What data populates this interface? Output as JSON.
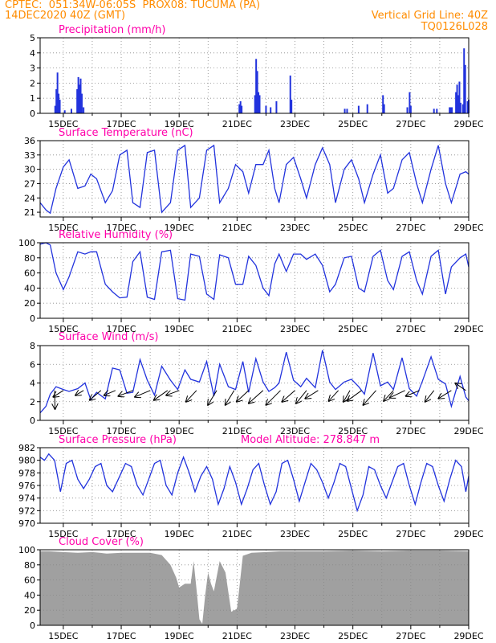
{
  "header": {
    "line1": "CPTEC:  051:34W-06:05S  PROX08: TUCUMA (PA)",
    "line2_left": "14DEC2020 40Z (GMT)",
    "line2_right": "Vertical Grid Line: 40Z",
    "line3_right": "TQ0126L028"
  },
  "colors": {
    "header": "#ff8c00",
    "panel_title": "#ff00aa",
    "series": "#2233dd",
    "cloud": "#a0a0a0",
    "arrow": "#000000"
  },
  "chart_data": [
    {
      "type": "bar",
      "title": "Precipitation (mm/h)",
      "ylim": [
        0,
        5
      ],
      "yticks": [
        "0",
        "1",
        "2",
        "3",
        "4",
        "5"
      ],
      "xticks": [
        "15DEC",
        "17DEC",
        "19DEC",
        "21DEC",
        "23DEC",
        "25DEC",
        "27DEC",
        "29DEC"
      ],
      "x_unit": "day_of_dec",
      "xlim": [
        14.2,
        29.0
      ],
      "points": [
        [
          14.72,
          0.5
        ],
        [
          14.76,
          1.6
        ],
        [
          14.8,
          2.7
        ],
        [
          14.84,
          1.3
        ],
        [
          14.88,
          0.9
        ],
        [
          15.05,
          0.2
        ],
        [
          15.28,
          0.3
        ],
        [
          15.48,
          1.6
        ],
        [
          15.52,
          2.4
        ],
        [
          15.56,
          1.9
        ],
        [
          15.6,
          2.3
        ],
        [
          15.64,
          1.3
        ],
        [
          15.7,
          0.4
        ],
        [
          21.08,
          0.6
        ],
        [
          21.12,
          0.8
        ],
        [
          21.16,
          0.5
        ],
        [
          21.62,
          1.2
        ],
        [
          21.66,
          3.6
        ],
        [
          21.7,
          2.8
        ],
        [
          21.74,
          1.4
        ],
        [
          21.78,
          1.2
        ],
        [
          22.0,
          0.5
        ],
        [
          22.16,
          0.4
        ],
        [
          22.36,
          0.8
        ],
        [
          22.84,
          2.5
        ],
        [
          22.88,
          0.9
        ],
        [
          24.72,
          0.3
        ],
        [
          24.8,
          0.3
        ],
        [
          25.2,
          0.5
        ],
        [
          25.5,
          0.6
        ],
        [
          26.04,
          1.2
        ],
        [
          26.08,
          0.6
        ],
        [
          26.88,
          0.4
        ],
        [
          26.96,
          1.4
        ],
        [
          27.0,
          0.5
        ],
        [
          27.8,
          0.3
        ],
        [
          27.9,
          0.3
        ],
        [
          28.34,
          0.4
        ],
        [
          28.38,
          0.4
        ],
        [
          28.42,
          0.4
        ],
        [
          28.56,
          1.4
        ],
        [
          28.6,
          1.9
        ],
        [
          28.64,
          1.2
        ],
        [
          28.68,
          2.1
        ],
        [
          28.72,
          0.7
        ],
        [
          28.8,
          0.6
        ],
        [
          28.84,
          4.3
        ],
        [
          28.88,
          3.2
        ],
        [
          28.96,
          0.8
        ],
        [
          29.0,
          0.9
        ]
      ]
    },
    {
      "type": "line",
      "title": "Surface Temperature (nC)",
      "ylim": [
        20,
        36
      ],
      "yticks": [
        "21",
        "24",
        "27",
        "30",
        "33",
        "36"
      ],
      "ytick_values": [
        21,
        24,
        27,
        30,
        33,
        36
      ],
      "xticks": [
        "15DEC",
        "17DEC",
        "19DEC",
        "21DEC",
        "23DEC",
        "25DEC",
        "27DEC",
        "29DEC"
      ],
      "x": [
        14.2,
        14.4,
        14.55,
        14.75,
        15.0,
        15.2,
        15.5,
        15.75,
        15.95,
        16.15,
        16.45,
        16.7,
        16.95,
        17.2,
        17.4,
        17.65,
        17.9,
        18.15,
        18.4,
        18.7,
        18.95,
        19.2,
        19.4,
        19.7,
        19.95,
        20.2,
        20.4,
        20.7,
        20.95,
        21.2,
        21.4,
        21.65,
        21.9,
        22.1,
        22.3,
        22.45,
        22.7,
        22.95,
        23.2,
        23.4,
        23.7,
        23.95,
        24.2,
        24.4,
        24.7,
        24.95,
        25.2,
        25.4,
        25.7,
        25.95,
        26.2,
        26.4,
        26.7,
        26.95,
        27.2,
        27.4,
        27.7,
        27.95,
        28.2,
        28.4,
        28.7,
        28.9,
        29.0
      ],
      "y": [
        23,
        21.5,
        20.8,
        26,
        30.5,
        32,
        26,
        26.5,
        29,
        28,
        23,
        25.5,
        33,
        34,
        23,
        22,
        33.5,
        34,
        21,
        23,
        34,
        35,
        22,
        24,
        34,
        35,
        23,
        26,
        31,
        29.5,
        25,
        31,
        31,
        34,
        26,
        23,
        31,
        32.5,
        28,
        24,
        31,
        34.5,
        31,
        23,
        30,
        32,
        28,
        23,
        29,
        33,
        25,
        26,
        32,
        33.5,
        27,
        23,
        30,
        35,
        27,
        23,
        29,
        29.5,
        29
      ]
    },
    {
      "type": "line",
      "title": "Relative Humidity (%)",
      "ylim": [
        0,
        100
      ],
      "yticks": [
        "0",
        "20",
        "40",
        "60",
        "80",
        "100"
      ],
      "ytick_values": [
        0,
        20,
        40,
        60,
        80,
        100
      ],
      "xticks": [
        "15DEC",
        "17DEC",
        "19DEC",
        "21DEC",
        "23DEC",
        "25DEC",
        "27DEC",
        "29DEC"
      ],
      "x": [
        14.2,
        14.4,
        14.55,
        14.75,
        15.0,
        15.2,
        15.5,
        15.75,
        15.95,
        16.15,
        16.45,
        16.7,
        16.95,
        17.2,
        17.4,
        17.65,
        17.9,
        18.15,
        18.4,
        18.7,
        18.95,
        19.2,
        19.4,
        19.7,
        19.95,
        20.2,
        20.4,
        20.7,
        20.95,
        21.2,
        21.4,
        21.65,
        21.9,
        22.1,
        22.3,
        22.45,
        22.7,
        22.95,
        23.2,
        23.4,
        23.7,
        23.95,
        24.2,
        24.4,
        24.7,
        24.95,
        25.2,
        25.4,
        25.7,
        25.95,
        26.2,
        26.4,
        26.7,
        26.95,
        27.2,
        27.4,
        27.7,
        27.95,
        28.2,
        28.4,
        28.7,
        28.9,
        29.0
      ],
      "y": [
        98,
        100,
        97,
        60,
        38,
        55,
        88,
        85,
        88,
        88,
        45,
        35,
        27,
        28,
        75,
        88,
        28,
        25,
        88,
        90,
        26,
        24,
        85,
        82,
        32,
        25,
        84,
        80,
        45,
        45,
        82,
        70,
        40,
        30,
        72,
        85,
        62,
        85,
        85,
        78,
        85,
        70,
        35,
        45,
        80,
        82,
        40,
        35,
        82,
        90,
        50,
        38,
        82,
        88,
        50,
        32,
        82,
        90,
        32,
        68,
        80,
        85,
        68
      ]
    },
    {
      "type": "line",
      "title": "Surface Wind (m/s)",
      "ylim": [
        0,
        8
      ],
      "yticks": [
        "0",
        "2",
        "4",
        "6",
        "8"
      ],
      "ytick_values": [
        0,
        2,
        4,
        6,
        8
      ],
      "xticks": [
        "15DEC",
        "17DEC",
        "19DEC",
        "21DEC",
        "23DEC",
        "25DEC",
        "27DEC",
        "29DEC"
      ],
      "x": [
        14.2,
        14.4,
        14.55,
        14.75,
        15.0,
        15.2,
        15.5,
        15.75,
        15.95,
        16.15,
        16.45,
        16.7,
        16.95,
        17.2,
        17.4,
        17.65,
        17.9,
        18.15,
        18.4,
        18.7,
        18.95,
        19.2,
        19.4,
        19.7,
        19.95,
        20.2,
        20.4,
        20.7,
        20.95,
        21.2,
        21.4,
        21.65,
        21.9,
        22.1,
        22.3,
        22.45,
        22.7,
        22.95,
        23.2,
        23.4,
        23.7,
        23.95,
        24.2,
        24.4,
        24.7,
        24.95,
        25.2,
        25.4,
        25.7,
        25.95,
        26.2,
        26.4,
        26.7,
        26.95,
        27.2,
        27.4,
        27.7,
        27.95,
        28.2,
        28.4,
        28.7,
        28.9,
        29.0
      ],
      "y": [
        0.8,
        1.5,
        2.8,
        3.6,
        3.3,
        3.1,
        3.4,
        4.0,
        2.2,
        3.0,
        2.3,
        5.6,
        5.4,
        2.9,
        3.0,
        6.5,
        4.3,
        2.7,
        5.8,
        4.3,
        3.3,
        5.4,
        4.4,
        4.1,
        6.3,
        2.6,
        6.0,
        3.6,
        3.3,
        6.3,
        3.0,
        6.6,
        4.1,
        3.1,
        3.5,
        4.0,
        7.3,
        4.3,
        3.6,
        4.5,
        3.5,
        7.5,
        4.1,
        3.3,
        4.1,
        4.4,
        3.6,
        2.8,
        7.2,
        3.7,
        4.1,
        3.3,
        6.7,
        3.4,
        2.6,
        4.2,
        6.8,
        4.4,
        3.9,
        1.5,
        4.7,
        2.5,
        2.1
      ],
      "arrows": [
        [
          14.7,
          3.2,
          0.05,
          2.3
        ],
        [
          15.0,
          3.2,
          -1.25,
          0.8
        ],
        [
          15.7,
          3.2,
          -1.0,
          0.6
        ],
        [
          16.3,
          3.2,
          -1.4,
          1.2
        ],
        [
          16.8,
          3.2,
          -1.4,
          0.6
        ],
        [
          17.4,
          3.2,
          -1.8,
          0.7
        ],
        [
          18.0,
          3.2,
          -1.9,
          0.8
        ],
        [
          18.6,
          3.2,
          -1.7,
          1.2
        ],
        [
          19.0,
          3.2,
          -1.6,
          0.6
        ],
        [
          19.6,
          3.2,
          -1.3,
          1.4
        ],
        [
          20.3,
          3.2,
          -1.1,
          1.8
        ],
        [
          20.9,
          3.2,
          -1.1,
          1.8
        ],
        [
          21.4,
          3.2,
          -1.5,
          1.4
        ],
        [
          21.9,
          3.2,
          -1.8,
          1.6
        ],
        [
          22.5,
          3.2,
          -1.8,
          1.8
        ],
        [
          23.0,
          3.2,
          -1.6,
          1.4
        ],
        [
          23.4,
          3.2,
          -1.3,
          1.6
        ],
        [
          23.8,
          3.2,
          -1.6,
          1.0
        ],
        [
          24.5,
          3.2,
          -1.2,
          1.3
        ],
        [
          24.9,
          3.2,
          -0.8,
          1.4
        ],
        [
          25.3,
          3.2,
          -1.8,
          1.3
        ],
        [
          25.8,
          3.2,
          -1.6,
          1.8
        ],
        [
          26.4,
          3.2,
          -1.2,
          1.3
        ],
        [
          26.8,
          3.2,
          -1.9,
          0.9
        ],
        [
          27.3,
          3.2,
          -1.7,
          0.7
        ],
        [
          27.8,
          3.2,
          -1.1,
          1.4
        ],
        [
          28.4,
          3.2,
          -1.6,
          1.0
        ],
        [
          28.9,
          3.2,
          -1.3,
          -0.9
        ]
      ]
    },
    {
      "type": "line",
      "title": "Surface Pressure (hPa)",
      "annotation": "Model Altitude: 278.847 m",
      "ylim": [
        970,
        982
      ],
      "yticks": [
        "970",
        "972",
        "974",
        "976",
        "978",
        "980",
        "982"
      ],
      "ytick_values": [
        970,
        972,
        974,
        976,
        978,
        980,
        982
      ],
      "xticks": [
        "15DEC",
        "17DEC",
        "19DEC",
        "21DEC",
        "23DEC",
        "25DEC",
        "27DEC",
        "29DEC"
      ],
      "x": [
        14.2,
        14.35,
        14.5,
        14.7,
        14.9,
        15.1,
        15.3,
        15.5,
        15.7,
        15.9,
        16.1,
        16.3,
        16.5,
        16.7,
        16.95,
        17.15,
        17.35,
        17.55,
        17.75,
        17.95,
        18.15,
        18.35,
        18.55,
        18.75,
        18.95,
        19.15,
        19.35,
        19.55,
        19.75,
        19.95,
        20.15,
        20.35,
        20.55,
        20.75,
        20.95,
        21.15,
        21.35,
        21.55,
        21.75,
        21.95,
        22.15,
        22.35,
        22.55,
        22.75,
        22.95,
        23.15,
        23.35,
        23.55,
        23.75,
        23.95,
        24.15,
        24.35,
        24.55,
        24.75,
        24.95,
        25.15,
        25.35,
        25.55,
        25.75,
        25.95,
        26.15,
        26.35,
        26.55,
        26.75,
        26.95,
        27.15,
        27.35,
        27.55,
        27.75,
        27.95,
        28.15,
        28.35,
        28.55,
        28.75,
        28.9,
        29.0
      ],
      "y": [
        980.5,
        980,
        981,
        980,
        975,
        979.5,
        980,
        977,
        975.5,
        977,
        979,
        979.5,
        976,
        975,
        977.5,
        979.5,
        979,
        976,
        974.5,
        977,
        979.5,
        980,
        976,
        974.5,
        978,
        980.5,
        978,
        975,
        977.5,
        979,
        977,
        973,
        975.5,
        979,
        976.5,
        973,
        975.5,
        978.5,
        979.5,
        976,
        973,
        975,
        979.5,
        980,
        977,
        973.5,
        976.5,
        979.5,
        978.5,
        976.5,
        974,
        976.5,
        979.5,
        979,
        975.5,
        972,
        974.5,
        979,
        978.5,
        976,
        974,
        976.5,
        979,
        979.5,
        976,
        973,
        976.5,
        979.5,
        979,
        976,
        973.5,
        977,
        980,
        979,
        975,
        977.5
      ]
    },
    {
      "type": "area",
      "title": "Cloud Cover (%)",
      "ylim": [
        0,
        100
      ],
      "yticks": [
        "0",
        "20",
        "40",
        "60",
        "80",
        "100"
      ],
      "ytick_values": [
        0,
        20,
        40,
        60,
        80,
        100
      ],
      "xticks": [
        "15DEC",
        "17DEC",
        "19DEC",
        "21DEC",
        "23DEC",
        "25DEC",
        "27DEC",
        "29DEC"
      ],
      "x": [
        14.2,
        14.5,
        15.0,
        15.5,
        16.0,
        16.5,
        17.0,
        17.5,
        18.0,
        18.4,
        18.7,
        18.9,
        19.0,
        19.2,
        19.4,
        19.5,
        19.6,
        19.7,
        19.8,
        19.9,
        20.0,
        20.1,
        20.2,
        20.4,
        20.6,
        20.8,
        21.0,
        21.2,
        21.5,
        22.0,
        22.5,
        23.0,
        24.0,
        25.0,
        26.0,
        27.0,
        28.0,
        29.0
      ],
      "y": [
        98,
        98,
        97,
        96,
        97,
        95,
        96,
        96,
        96,
        93,
        80,
        63,
        50,
        55,
        55,
        85,
        48,
        8,
        2,
        40,
        70,
        55,
        45,
        85,
        70,
        18,
        22,
        92,
        96,
        97,
        98,
        98,
        98,
        99,
        98,
        99,
        99,
        98
      ]
    }
  ]
}
